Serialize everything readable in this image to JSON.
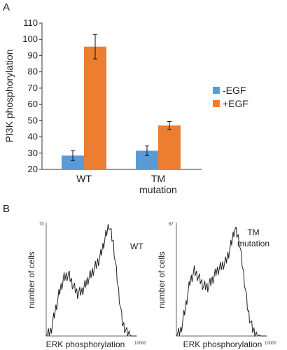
{
  "panels": {
    "a": "A",
    "b": "B"
  },
  "chart_data": [
    {
      "type": "bar",
      "ylabel": "PI3K phosphorylation",
      "ylim": [
        20,
        110
      ],
      "yticks": [
        20,
        30,
        40,
        50,
        60,
        70,
        80,
        90,
        100,
        110
      ],
      "categories": [
        "WT",
        "TM\nmutation"
      ],
      "series": [
        {
          "name": "-EGF",
          "color": "#5b9bd5",
          "values": [
            28.5,
            31.5
          ],
          "errors": [
            3.0,
            3.0
          ]
        },
        {
          "name": "+EGF",
          "color": "#ed7d31",
          "values": [
            95.5,
            47.0
          ],
          "errors": [
            7.5,
            2.5
          ]
        }
      ],
      "legend_position": "right",
      "grid": false
    },
    {
      "type": "line",
      "title": "WT",
      "xlabel": "ERK phosphorylation",
      "ylabel": "number of cells",
      "ymax_label": "70",
      "xmax_label": "10000",
      "x": [
        0,
        0.05,
        0.1,
        0.15,
        0.2,
        0.25,
        0.3,
        0.35,
        0.4,
        0.45,
        0.5,
        0.55,
        0.6,
        0.65,
        0.7,
        0.75,
        0.8,
        0.85,
        0.9,
        0.95,
        1.0
      ],
      "y": [
        0,
        4,
        22,
        40,
        52,
        55,
        45,
        38,
        40,
        48,
        55,
        62,
        70,
        85,
        100,
        82,
        45,
        12,
        3,
        0,
        0
      ],
      "ylim": [
        0,
        100
      ]
    },
    {
      "type": "line",
      "title": "TM\nmutation",
      "xlabel": "ERK phosphorylation",
      "ylabel": "number of cells",
      "ymax_label": "67",
      "xmax_label": "10000",
      "x": [
        0,
        0.05,
        0.1,
        0.15,
        0.2,
        0.25,
        0.3,
        0.35,
        0.4,
        0.45,
        0.5,
        0.55,
        0.6,
        0.65,
        0.7,
        0.75,
        0.8,
        0.85,
        0.9,
        0.95,
        1.0
      ],
      "y": [
        0,
        5,
        25,
        48,
        58,
        52,
        45,
        44,
        50,
        58,
        62,
        66,
        78,
        96,
        86,
        55,
        22,
        6,
        1,
        0,
        0
      ],
      "ylim": [
        0,
        100
      ]
    }
  ]
}
